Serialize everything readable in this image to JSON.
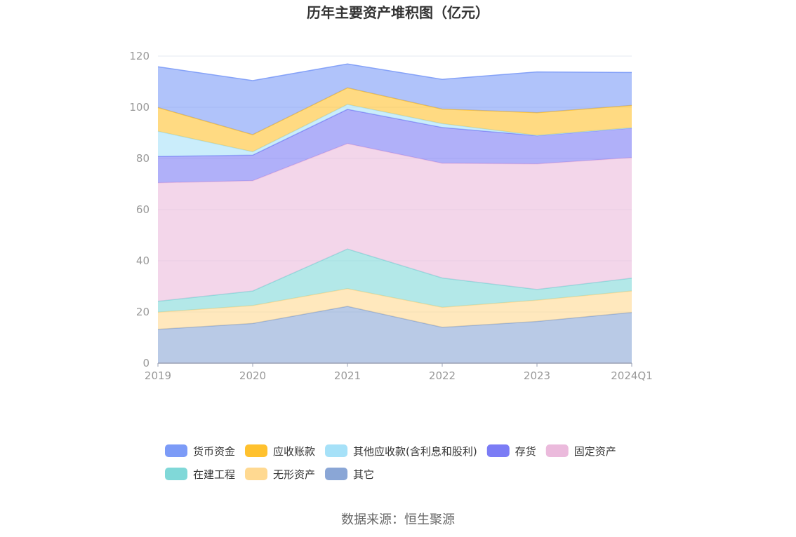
{
  "chart_data": {
    "type": "area",
    "stacked": true,
    "title": "历年主要资产堆积图（亿元）",
    "categories": [
      "2019",
      "2020",
      "2021",
      "2022",
      "2023",
      "2024Q1"
    ],
    "ylim": [
      0,
      120
    ],
    "yticks": [
      0,
      20,
      40,
      60,
      80,
      100,
      120
    ],
    "grid": true,
    "legend_position": "bottom",
    "series": [
      {
        "name": "其它",
        "color": "#8aa6d6",
        "values": [
          13.2,
          15.5,
          22.2,
          14.0,
          16.3,
          19.8
        ]
      },
      {
        "name": "无形资产",
        "color": "#ffd991",
        "values": [
          6.7,
          7.0,
          6.9,
          7.8,
          8.3,
          8.4
        ]
      },
      {
        "name": "在建工程",
        "color": "#80d8d8",
        "values": [
          4.3,
          5.7,
          15.5,
          11.5,
          4.2,
          5.0
        ]
      },
      {
        "name": "固定资产",
        "color": "#ebbadc",
        "values": [
          46.3,
          43.1,
          41.2,
          44.8,
          49.1,
          47.1
        ]
      },
      {
        "name": "存货",
        "color": "#7b7cf5",
        "values": [
          10.3,
          10.0,
          13.4,
          14.0,
          11.0,
          11.6
        ]
      },
      {
        "name": "其他应收款(含利息和股利)",
        "color": "#a6e1f8",
        "values": [
          9.8,
          1.3,
          1.9,
          1.5,
          0.1,
          0.1
        ]
      },
      {
        "name": "应收账款",
        "color": "#ffc12e",
        "values": [
          9.3,
          6.7,
          6.5,
          5.7,
          8.9,
          8.7
        ]
      },
      {
        "name": "货币资金",
        "color": "#7c9bf7",
        "values": [
          15.9,
          21.1,
          9.3,
          11.6,
          15.9,
          12.9
        ]
      }
    ],
    "legend_order": [
      "货币资金",
      "应收账款",
      "其他应收款(含利息和股利)",
      "存货",
      "固定资产",
      "在建工程",
      "无形资产",
      "其它"
    ]
  },
  "source": "数据来源：恒生聚源"
}
